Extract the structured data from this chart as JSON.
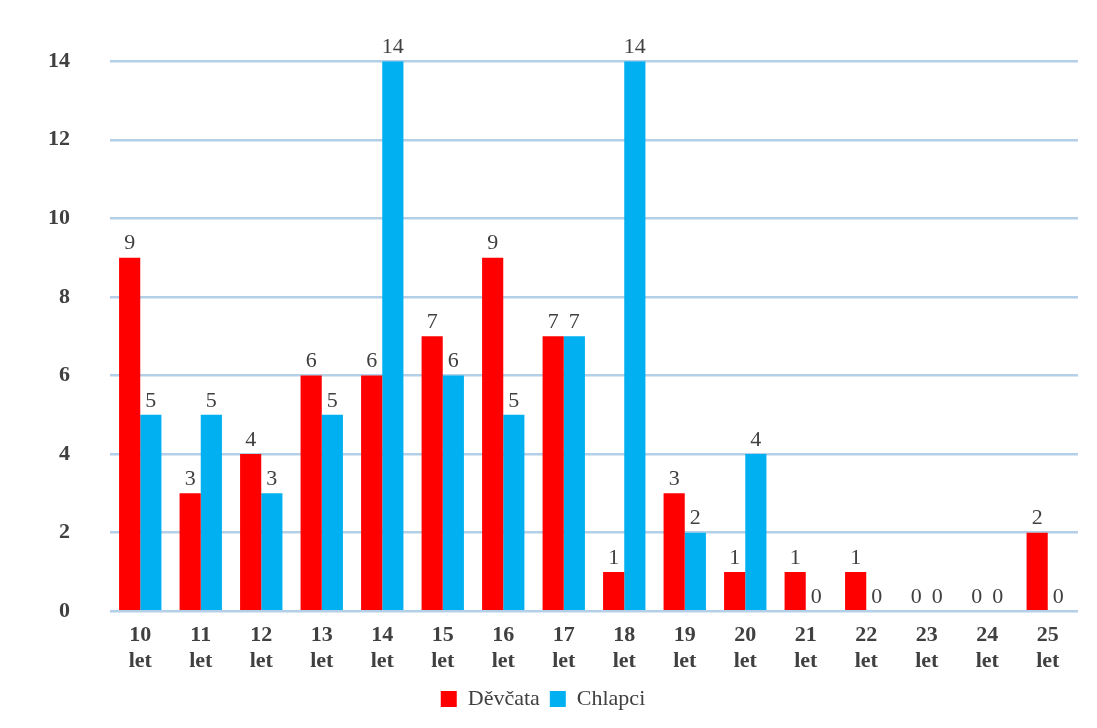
{
  "chart_data": {
    "type": "bar",
    "categories": [
      "10 let",
      "11 let",
      "12 let",
      "13 let",
      "14 let",
      "15 let",
      "16 let",
      "17 let",
      "18 let",
      "19 let",
      "20 let",
      "21 let",
      "22 let",
      "23 let",
      "24 let",
      "25 let"
    ],
    "series": [
      {
        "name": "Děvčata",
        "color": "#ff0000",
        "values": [
          9,
          3,
          4,
          6,
          6,
          7,
          9,
          7,
          1,
          3,
          1,
          1,
          1,
          0,
          0,
          2
        ]
      },
      {
        "name": "Chlapci",
        "color": "#00b0f0",
        "values": [
          5,
          5,
          3,
          5,
          14,
          6,
          5,
          7,
          14,
          2,
          4,
          0,
          0,
          0,
          0,
          0
        ]
      }
    ],
    "ylim": [
      0,
      14
    ],
    "yticks": [
      0,
      2,
      4,
      6,
      8,
      10,
      12,
      14
    ],
    "grid": "y",
    "legend": "bottom",
    "data_labels": true
  }
}
